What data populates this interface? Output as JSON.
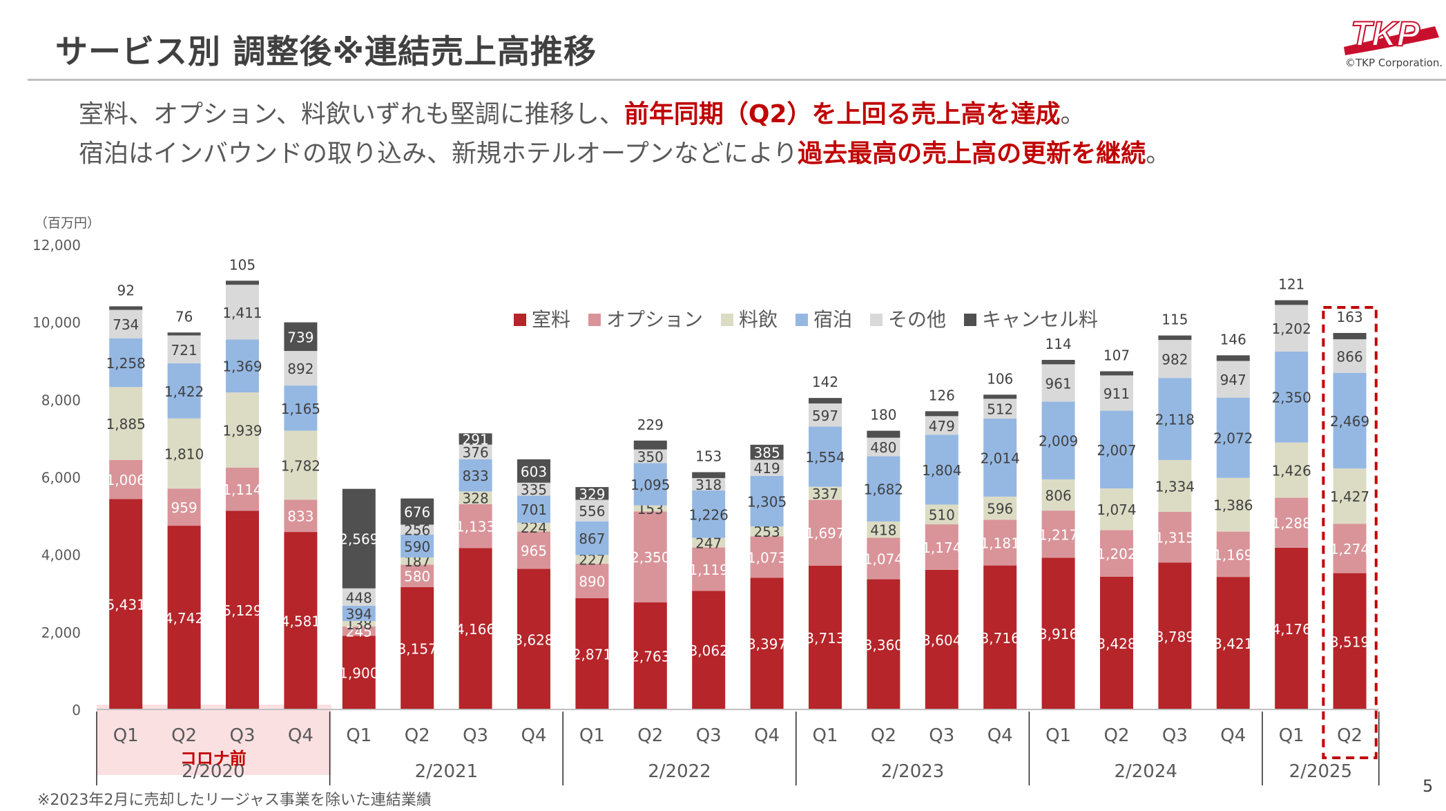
{
  "header": {
    "title": "サービス別 調整後※連結売上高推移",
    "copyright": "©TKP Corporation.",
    "logo_text": "TKP"
  },
  "lead": {
    "line1_plain": "室料、オプション、料飲いずれも堅調に推移し、",
    "line1_highlight": "前年同期（Q2）を上回る売上高を達成",
    "line1_end": "。",
    "line2_plain": "宿泊はインバウンドの取り込み、新規ホテルオープンなどにより",
    "line2_highlight": "過去最高の売上高の更新を継続",
    "line2_end": "。"
  },
  "footnote": "※2023年2月に売却したリージャス事業を除いた連結業績",
  "page_number": "5",
  "colors": {
    "室料": "#b5252a",
    "オプション": "#d99499",
    "料飲": "#dcdcc4",
    "宿泊": "#95b8e3",
    "その他": "#d9d9d9",
    "キャンセル料": "#505050",
    "highlight": "#c00000",
    "covid_band": "#fbe0e2"
  },
  "chart_data": {
    "type": "bar",
    "stacked": true,
    "unit_label": "（百万円）",
    "ylim": [
      0,
      12000
    ],
    "yticks": [
      "0",
      "2,000",
      "4,000",
      "6,000",
      "8,000",
      "10,000",
      "12,000"
    ],
    "legend_position": "top-center",
    "categories": [
      "Q1",
      "Q2",
      "Q3",
      "Q4",
      "Q1",
      "Q2",
      "Q3",
      "Q4",
      "Q1",
      "Q2",
      "Q3",
      "Q4",
      "Q1",
      "Q2",
      "Q3",
      "Q4",
      "Q1",
      "Q2",
      "Q3",
      "Q4",
      "Q1",
      "Q2"
    ],
    "fiscal_years": [
      {
        "label": "2/2020",
        "quarters": 4,
        "note": "コロナ前"
      },
      {
        "label": "2/2021",
        "quarters": 4
      },
      {
        "label": "2/2022",
        "quarters": 4
      },
      {
        "label": "2/2023",
        "quarters": 4
      },
      {
        "label": "2/2024",
        "quarters": 4
      },
      {
        "label": "2/2025",
        "quarters": 2
      }
    ],
    "highlighted_bar_index": 21,
    "series": [
      {
        "name": "室料",
        "values": [
          5431,
          4742,
          5129,
          4581,
          1900,
          3157,
          4166,
          3628,
          2871,
          2763,
          3062,
          3397,
          3713,
          3360,
          3604,
          3716,
          3916,
          3428,
          3789,
          3421,
          4176,
          3519
        ]
      },
      {
        "name": "オプション",
        "values": [
          1006,
          959,
          1114,
          833,
          245,
          580,
          1133,
          965,
          890,
          2350,
          1119,
          1073,
          1697,
          1074,
          1174,
          1181,
          1217,
          1202,
          1315,
          1169,
          1288,
          1274
        ]
      },
      {
        "name": "料飲",
        "values": [
          1885,
          1810,
          1939,
          1782,
          138,
          187,
          328,
          224,
          227,
          153,
          247,
          253,
          337,
          418,
          510,
          596,
          806,
          1074,
          1334,
          1386,
          1426,
          1427
        ]
      },
      {
        "name": "宿泊",
        "values": [
          1258,
          1422,
          1369,
          1165,
          394,
          590,
          833,
          701,
          867,
          1095,
          1226,
          1305,
          1554,
          1682,
          1804,
          2014,
          2009,
          2007,
          2118,
          2072,
          2350,
          2469
        ]
      },
      {
        "name": "その他",
        "values": [
          734,
          721,
          1411,
          892,
          448,
          256,
          376,
          335,
          556,
          350,
          318,
          419,
          597,
          480,
          479,
          512,
          961,
          911,
          982,
          947,
          1202,
          866
        ]
      },
      {
        "name": "キャンセル料",
        "values": [
          92,
          76,
          105,
          739,
          2569,
          676,
          291,
          603,
          329,
          229,
          153,
          385,
          142,
          180,
          126,
          106,
          114,
          107,
          115,
          146,
          121,
          163
        ]
      }
    ],
    "labels": [
      [
        "5,431",
        "4,742",
        "5,129",
        "4,581",
        "1,900",
        "3,157",
        "4,166",
        "3,628",
        "2,871",
        "2,763",
        "3,062",
        "3,397",
        "3,713",
        "3,360",
        "3,604",
        "3,716",
        "3,916",
        "3,428",
        "3,789",
        "3,421",
        "4,176",
        "3,519"
      ],
      [
        "1,006",
        "959",
        "1,114",
        "833",
        "245",
        "580",
        "1,133",
        "965",
        "890",
        "2,350",
        "1,119",
        "1,073",
        "1,697",
        "1,074",
        "1,174",
        "1,181",
        "1,217",
        "1,202",
        "1,315",
        "1,169",
        "1,288",
        "1,274"
      ],
      [
        "1,885",
        "1,810",
        "1,939",
        "1,782",
        "138",
        "187",
        "328",
        "224",
        "227",
        "153",
        "247",
        "253",
        "337",
        "418",
        "510",
        "596",
        "806",
        "1,074",
        "1,334",
        "1,386",
        "1,426",
        "1,427"
      ],
      [
        "1,258",
        "1,422",
        "1,369",
        "1,165",
        "394",
        "590",
        "833",
        "701",
        "867",
        "1,095",
        "1,226",
        "1,305",
        "1,554",
        "1,682",
        "1,804",
        "2,014",
        "2,009",
        "2,007",
        "2,118",
        "2,072",
        "2,350",
        "2,469"
      ],
      [
        "734",
        "721",
        "1,411",
        "892",
        "448",
        "256",
        "376",
        "335",
        "556",
        "350",
        "318",
        "419",
        "597",
        "480",
        "479",
        "512",
        "961",
        "911",
        "982",
        "947",
        "1,202",
        "866"
      ],
      [
        "92",
        "76",
        "105",
        "739",
        "2,569",
        "676",
        "291",
        "603",
        "329",
        "229",
        "153",
        "385",
        "142",
        "180",
        "126",
        "106",
        "114",
        "107",
        "115",
        "146",
        "121",
        "163"
      ]
    ]
  }
}
